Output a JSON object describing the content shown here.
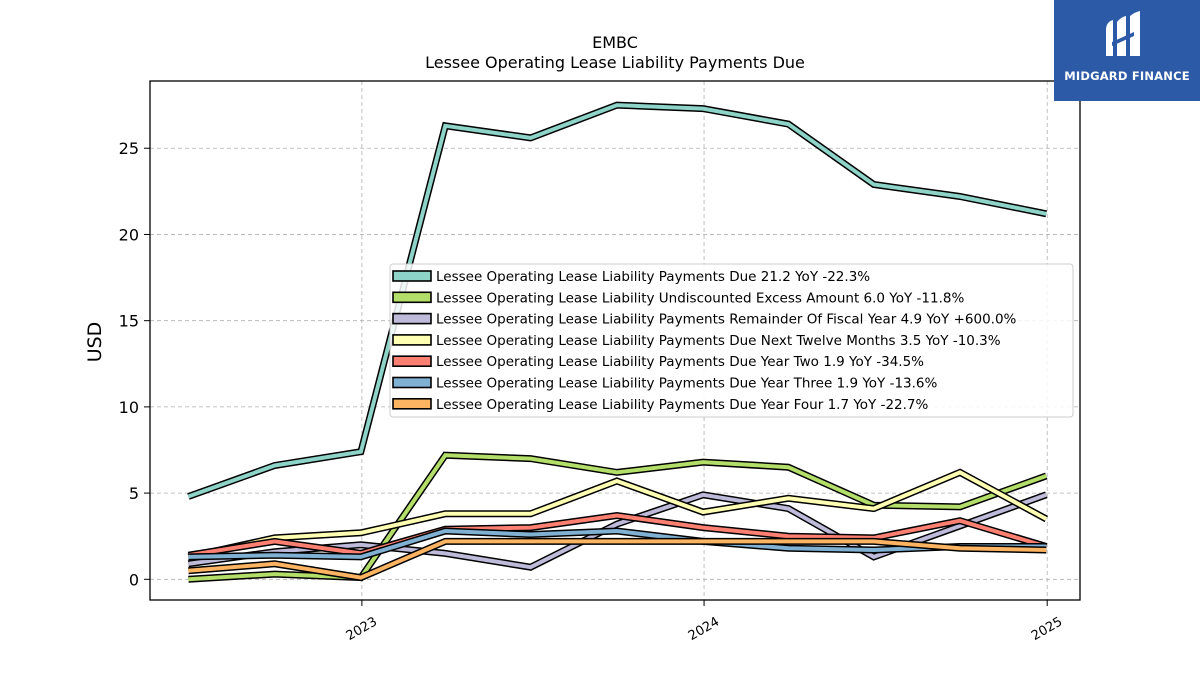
{
  "brand": {
    "name": "MIDGARD FINANCE",
    "bg_color": "#2d5aa7"
  },
  "chart_data": {
    "type": "line",
    "title": "EMBC",
    "subtitle": "Lessee Operating Lease Liability Payments Due",
    "ylabel": "USD",
    "xlabel": "",
    "ylim": [
      -1.2,
      28.9
    ],
    "yticks": [
      0,
      5,
      10,
      15,
      20,
      25
    ],
    "xlim": [
      "2022-05-20",
      "2025-02-05"
    ],
    "xticks": [
      {
        "date": "2023-01-01",
        "label": "2023"
      },
      {
        "date": "2024-01-01",
        "label": "2024"
      },
      {
        "date": "2025-01-01",
        "label": "2025"
      }
    ],
    "grid": true,
    "legend_position": "center-right",
    "x": [
      "2022-06-30",
      "2022-09-30",
      "2022-12-31",
      "2023-03-31",
      "2023-06-30",
      "2023-09-30",
      "2023-12-31",
      "2024-03-31",
      "2024-06-30",
      "2024-09-30",
      "2024-12-31"
    ],
    "series": [
      {
        "name": "Lessee Operating Lease Liability Payments Due",
        "legend_label": "Lessee Operating Lease Liability Payments Due  21.2 YoY -22.3%",
        "color": "#8dd3c7",
        "values": [
          4.8,
          6.6,
          7.4,
          26.3,
          25.6,
          27.5,
          27.3,
          26.4,
          22.9,
          22.2,
          21.2
        ]
      },
      {
        "name": "Lessee Operating Lease Liability Undiscounted Excess Amount",
        "legend_label": "Lessee Operating Lease Liability Undiscounted Excess Amount  6.0 YoY -11.8%",
        "color": "#b3de69",
        "values": [
          0.0,
          0.3,
          0.1,
          7.2,
          7.0,
          6.2,
          6.8,
          6.5,
          4.3,
          4.2,
          6.0
        ]
      },
      {
        "name": "Lessee Operating Lease Liability Payments Remainder Of Fiscal Year",
        "legend_label": "Lessee Operating Lease Liability Payments Remainder Of Fiscal Year  4.9 YoY +600.0%",
        "color": "#bebada",
        "values": [
          0.9,
          1.6,
          2.0,
          1.5,
          0.7,
          3.2,
          4.9,
          4.1,
          1.3,
          3.1,
          4.9
        ]
      },
      {
        "name": "Lessee Operating Lease Liability Payments Due Next Twelve Months",
        "legend_label": "Lessee Operating Lease Liability Payments Due Next Twelve Months  3.5 YoY -10.3%",
        "color": "#ffffb3",
        "values": [
          1.3,
          2.4,
          2.7,
          3.8,
          3.8,
          5.7,
          3.9,
          4.7,
          4.1,
          6.2,
          3.5
        ]
      },
      {
        "name": "Lessee Operating Lease Liability Payments Due Year Two",
        "legend_label": "Lessee Operating Lease Liability Payments Due Year Two  1.9 YoY -34.5%",
        "color": "#fb8072",
        "values": [
          1.4,
          2.2,
          1.5,
          2.9,
          3.0,
          3.7,
          3.0,
          2.5,
          2.4,
          3.4,
          1.9
        ]
      },
      {
        "name": "Lessee Operating Lease Liability Payments Due Year Three",
        "legend_label": "Lessee Operating Lease Liability Payments Due Year Three  1.9 YoY -13.6%",
        "color": "#80b1d3",
        "values": [
          1.3,
          1.4,
          1.3,
          2.8,
          2.6,
          2.8,
          2.2,
          1.8,
          1.7,
          1.9,
          1.9
        ]
      },
      {
        "name": "Lessee Operating Lease Liability Payments Due Year Four",
        "legend_label": "Lessee Operating Lease Liability Payments Due Year Four  1.7 YoY -22.7%",
        "color": "#fdb462",
        "values": [
          0.5,
          0.9,
          0.1,
          2.2,
          2.2,
          2.2,
          2.2,
          2.2,
          2.2,
          1.8,
          1.7
        ]
      }
    ]
  }
}
